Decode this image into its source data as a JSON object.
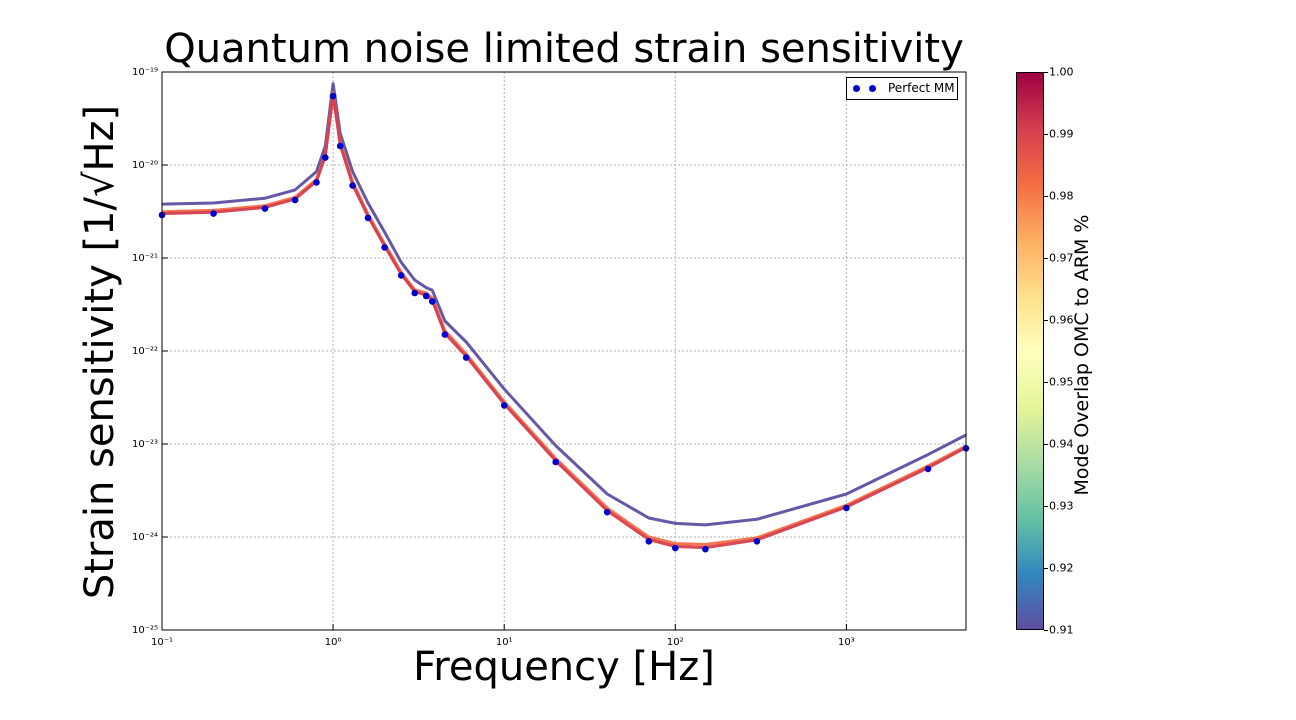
{
  "chart_data": {
    "type": "line",
    "title": "Quantum noise limited strain sensitivity",
    "xlabel": "Frequency [Hz]",
    "ylabel": "Strain sensitivity [1/√Hz]",
    "xscale": "log",
    "yscale": "log",
    "xlim": [
      0.1,
      5000
    ],
    "ylim": [
      1e-25,
      1e-19
    ],
    "x_ticks": [
      {
        "value": 0.1,
        "label": "10⁻¹"
      },
      {
        "value": 1,
        "label": "10⁰"
      },
      {
        "value": 10,
        "label": "10¹"
      },
      {
        "value": 100,
        "label": "10²"
      },
      {
        "value": 1000,
        "label": "10³"
      }
    ],
    "y_ticks": [
      {
        "value": 1e-25,
        "label": "10⁻²⁵"
      },
      {
        "value": 1e-24,
        "label": "10⁻²⁴"
      },
      {
        "value": 1e-23,
        "label": "10⁻²³"
      },
      {
        "value": 1e-22,
        "label": "10⁻²²"
      },
      {
        "value": 1e-21,
        "label": "10⁻²¹"
      },
      {
        "value": 1e-20,
        "label": "10⁻²⁰"
      },
      {
        "value": 1e-19,
        "label": "10⁻¹⁹"
      }
    ],
    "grid": true,
    "legend": {
      "position": "top-right",
      "entries": [
        "Perfect MM"
      ]
    },
    "reference_series": {
      "name": "Perfect MM",
      "marker": "dots",
      "color": "#0000cc",
      "x": [
        0.1,
        0.2,
        0.4,
        0.6,
        0.8,
        0.9,
        1.0,
        1.1,
        1.3,
        1.6,
        2.0,
        2.5,
        3.0,
        3.5,
        3.8,
        4.5,
        6,
        10,
        20,
        40,
        70,
        100,
        150,
        300,
        1000,
        3000,
        5000
      ],
      "y": [
        2.9e-21,
        3e-21,
        3.4e-21,
        4.2e-21,
        6.5e-21,
        1.2e-20,
        5.5e-20,
        1.6e-20,
        6e-21,
        2.7e-21,
        1.3e-21,
        6.5e-22,
        4.2e-22,
        3.9e-22,
        3.4e-22,
        1.5e-22,
        8.5e-23,
        2.6e-23,
        6.4e-24,
        1.85e-24,
        9e-25,
        7.6e-25,
        7.4e-25,
        9e-25,
        2.05e-24,
        5.4e-24,
        9e-24
      ]
    },
    "series": [
      {
        "mode_overlap": 0.91,
        "color": "#5e4fa2",
        "x": [
          0.1,
          0.2,
          0.4,
          0.6,
          0.8,
          0.9,
          1.0,
          1.1,
          1.3,
          1.6,
          2.0,
          2.5,
          3.0,
          3.5,
          3.8,
          4.5,
          6,
          10,
          20,
          40,
          70,
          100,
          150,
          300,
          1000,
          3000,
          5000
        ],
        "y": [
          3.8e-21,
          3.9e-21,
          4.4e-21,
          5.4e-21,
          8.5e-21,
          1.6e-20,
          7.5e-20,
          2.2e-20,
          8.5e-21,
          3.9e-21,
          1.9e-21,
          9e-22,
          5.8e-22,
          4.8e-22,
          4.5e-22,
          2.1e-22,
          1.25e-22,
          3.9e-23,
          9.6e-24,
          2.9e-24,
          1.6e-24,
          1.4e-24,
          1.35e-24,
          1.55e-24,
          2.9e-24,
          7.7e-24,
          1.25e-23
        ]
      },
      {
        "mode_overlap": 0.98,
        "color": "#f46d43",
        "x": [
          0.1,
          0.2,
          0.4,
          0.6,
          0.8,
          0.9,
          1.0,
          1.1,
          1.3,
          1.6,
          2.0,
          2.5,
          3.0,
          3.5,
          3.8,
          4.5,
          6,
          10,
          20,
          40,
          70,
          100,
          150,
          300,
          1000,
          3000,
          5000
        ],
        "y": [
          3.15e-21,
          3.25e-21,
          3.65e-21,
          4.5e-21,
          7e-21,
          1.3e-20,
          6e-20,
          1.75e-20,
          6.6e-21,
          2.95e-21,
          1.42e-21,
          7e-22,
          4.55e-22,
          4.2e-22,
          3.7e-22,
          1.65e-22,
          9.3e-23,
          2.85e-23,
          7e-24,
          2.05e-24,
          1e-24,
          8.5e-25,
          8.3e-25,
          9.8e-25,
          2.2e-24,
          5.8e-24,
          9.5e-24
        ]
      },
      {
        "mode_overlap": 0.99,
        "color": "#d53e4f",
        "x": [
          0.1,
          0.2,
          0.4,
          0.6,
          0.8,
          0.9,
          1.0,
          1.1,
          1.3,
          1.6,
          2.0,
          2.5,
          3.0,
          3.5,
          3.8,
          4.5,
          6,
          10,
          20,
          40,
          70,
          100,
          150,
          300,
          1000,
          3000,
          5000
        ],
        "y": [
          3e-21,
          3.1e-21,
          3.5e-21,
          4.3e-21,
          6.7e-21,
          1.25e-20,
          5.7e-20,
          1.65e-20,
          6.2e-21,
          2.8e-21,
          1.35e-21,
          6.7e-22,
          4.35e-22,
          4e-22,
          3.5e-22,
          1.55e-22,
          8.8e-23,
          2.7e-23,
          6.6e-24,
          1.92e-24,
          9.4e-25,
          7.9e-25,
          7.7e-25,
          9.3e-25,
          2.1e-24,
          5.55e-24,
          9.2e-24
        ]
      }
    ],
    "colorbar": {
      "label": "Mode Overlap OMC to ARM %",
      "range": [
        0.91,
        1.0
      ],
      "ticks": [
        "0.91",
        "0.92",
        "0.93",
        "0.94",
        "0.95",
        "0.96",
        "0.97",
        "0.98",
        "0.99",
        "1.00"
      ],
      "colors": [
        "#5e4fa2",
        "#3288bd",
        "#66c2a5",
        "#abdda4",
        "#e6f598",
        "#ffffbf",
        "#fee08b",
        "#fdae61",
        "#f46d43",
        "#d53e4f",
        "#9e0142"
      ]
    }
  }
}
